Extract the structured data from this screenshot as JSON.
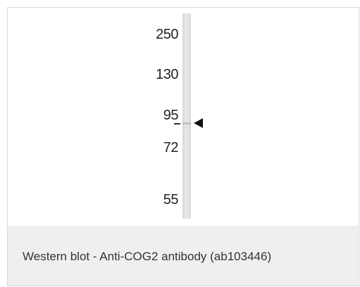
{
  "blot": {
    "markers": [
      {
        "label": "250"
      },
      {
        "label": "130"
      },
      {
        "label": "95"
      },
      {
        "label": "72"
      },
      {
        "label": "55"
      }
    ],
    "arrow_icon": "left-pointing-triangle-icon"
  },
  "caption": {
    "text": "Western blot - Anti-COG2 antibody (ab103446)"
  },
  "colors": {
    "caption_background": "#efefef",
    "lane": "#e2e2e2",
    "text": "#333333"
  }
}
